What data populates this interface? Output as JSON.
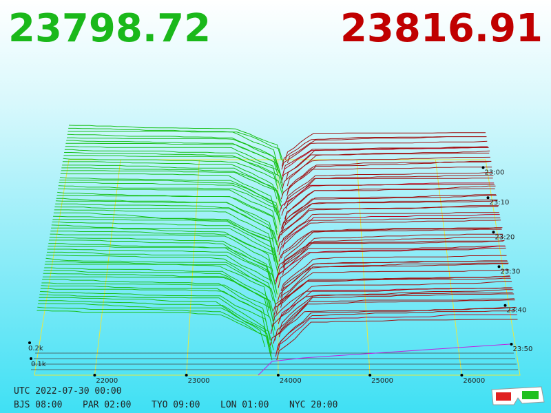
{
  "header": {
    "bid": "23798.72",
    "ask": "23816.91"
  },
  "price_axis": [
    "22000",
    "23000",
    "24000",
    "25000",
    "26000"
  ],
  "time_axis": [
    "23:00",
    "23:10",
    "23:20",
    "23:30",
    "23:40",
    "23:50"
  ],
  "depth_axis": [
    "0.2k",
    "0.1k"
  ],
  "footer": {
    "utc": "UTC 2022-07-30 00:00",
    "zones": [
      "BJS 08:00",
      "PAR 02:00",
      "TYO 09:00",
      "LON 01:00",
      "NYC 20:00"
    ]
  }
}
